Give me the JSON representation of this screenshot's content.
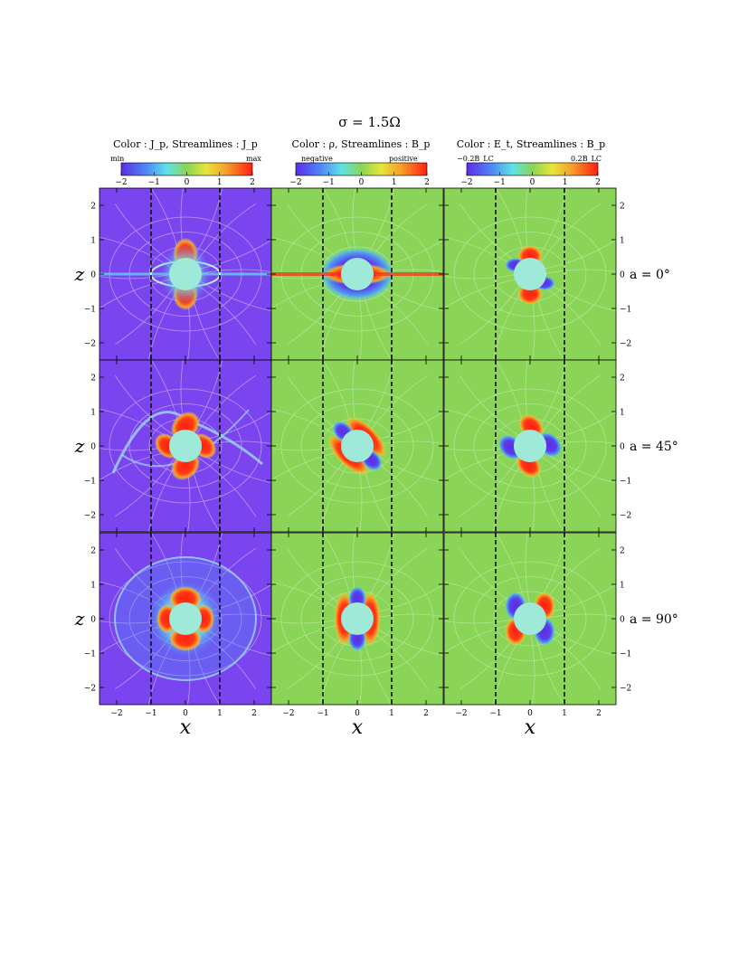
{
  "title": "σ = 1.5Ω",
  "colorbars": [
    {
      "title": "Color : J_p,    Streamlines : J_p",
      "min_label": "min",
      "max_label": "max",
      "ticks": [
        "−2",
        "−1",
        "0",
        "1",
        "2"
      ],
      "range": [
        -2,
        2
      ]
    },
    {
      "title": "Color : ρ,    Streamlines : B_p",
      "min_label": "negative",
      "max_label": "positive",
      "ticks": [
        "−2",
        "−1",
        "0",
        "1",
        "2"
      ],
      "range": [
        -2,
        2
      ]
    },
    {
      "title": "Color : E_t,    Streamlines : B_p",
      "min_label": "−0.2B_LC",
      "max_label": "0.2B_LC",
      "ticks": [
        "−2",
        "−1",
        "0",
        "1",
        "2"
      ],
      "range": [
        -2,
        2
      ]
    }
  ],
  "row_labels": [
    "a = 0°",
    "a = 45°",
    "a = 90°"
  ],
  "axis_labels": {
    "x": "x",
    "z": "z"
  },
  "colors": {
    "background_jp": "#7a44ef",
    "background_field": "#8ad457",
    "star": "#9fe9d9",
    "positive": "#ff2a16",
    "negative": "#5a2fe6",
    "dashed_line": "#111111",
    "streamline": "#ffffff"
  },
  "chart_data": {
    "type": "heatmap",
    "layout": "3x3 grid of panels",
    "xlim": [
      -2.5,
      2.5
    ],
    "zlim": [
      -2.5,
      2.5
    ],
    "x_ticks": [
      -2,
      -1,
      0,
      1,
      2
    ],
    "z_ticks": [
      -2,
      -1,
      0,
      1,
      2
    ],
    "xlabel": "x",
    "ylabel": "z",
    "light_cylinder_x": [
      -1,
      1
    ],
    "star_radius": 0.25,
    "colormap": "rainbow (blue → cyan → green → yellow → red)",
    "inclinations_deg": [
      0,
      45,
      90
    ],
    "columns": [
      "J_p",
      "ρ",
      "E_t"
    ]
  }
}
